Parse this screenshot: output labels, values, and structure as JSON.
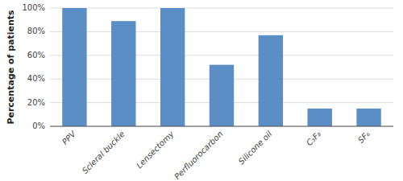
{
  "chart_data": {
    "type": "bar",
    "ylabel": "Percentage of patients",
    "categories": [
      "PPV",
      "Scleral buckle",
      "Lensectomy",
      "Perfluorocarbon",
      "Silicone oil",
      "C₃F₈",
      "SF₆"
    ],
    "values": [
      100,
      89,
      100,
      52,
      77,
      15,
      15
    ],
    "color": "#5b8ec4",
    "ylim": [
      0,
      100
    ],
    "yticks": [
      {
        "value": 0,
        "label": "0%"
      },
      {
        "value": 20,
        "label": "20%"
      },
      {
        "value": 40,
        "label": "40%"
      },
      {
        "value": 60,
        "label": "60%"
      },
      {
        "value": 80,
        "label": "80%"
      },
      {
        "value": 100,
        "label": "100%"
      }
    ],
    "grid": true
  }
}
